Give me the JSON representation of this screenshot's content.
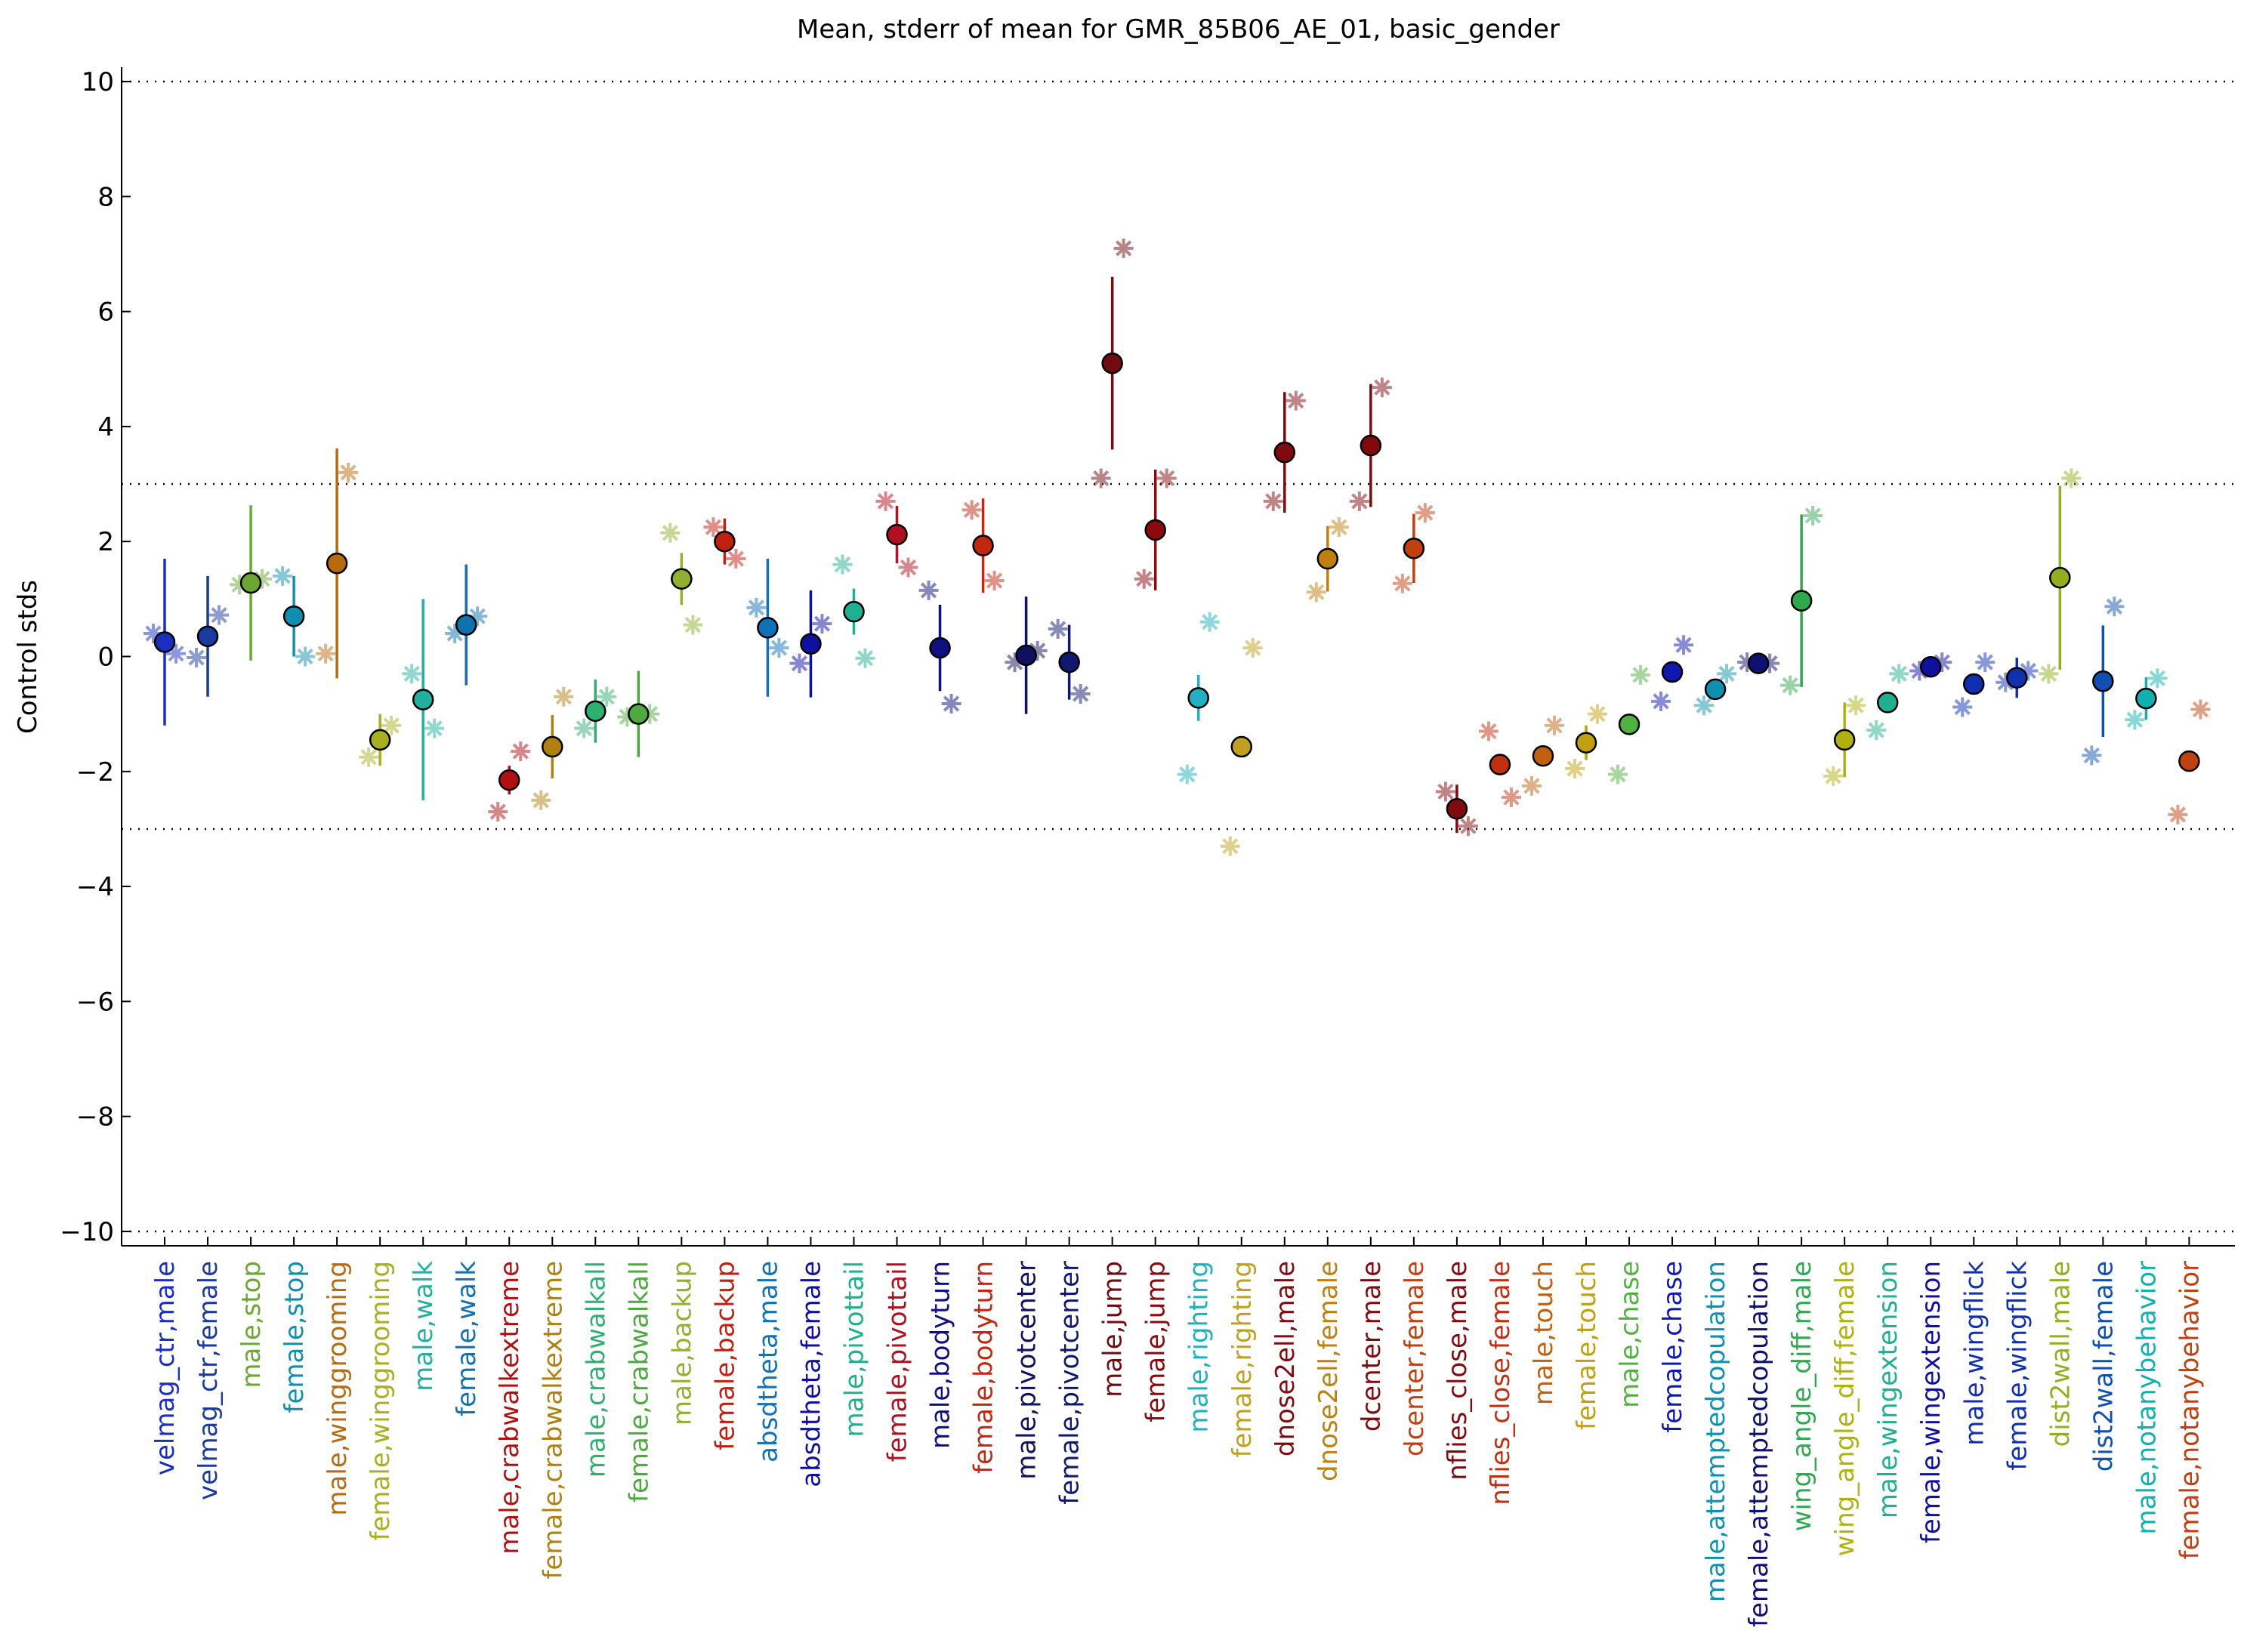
{
  "chart_data": {
    "type": "errorbar",
    "title": "Mean, stderr of mean for GMR_85B06_AE_01, basic_gender",
    "ylabel": "Control stds",
    "categories": [
      "velmag_ctr,male",
      "velmag_ctr,female",
      "male,stop",
      "female,stop",
      "male,winggrooming",
      "female,winggrooming",
      "male,walk",
      "female,walk",
      "male,crabwalkextreme",
      "female,crabwalkextreme",
      "male,crabwalkall",
      "female,crabwalkall",
      "male,backup",
      "female,backup",
      "absdtheta,male",
      "absdtheta,female",
      "male,pivottail",
      "female,pivottail",
      "male,bodyturn",
      "female,bodyturn",
      "male,pivotcenter",
      "female,pivotcenter",
      "male,jump",
      "female,jump",
      "male,righting",
      "female,righting",
      "dnose2ell,male",
      "dnose2ell,female",
      "dcenter,male",
      "dcenter,female",
      "nflies_close,male",
      "nflies_close,female",
      "male,touch",
      "female,touch",
      "male,chase",
      "female,chase",
      "male,attemptedcopulation",
      "female,attemptedcopulation",
      "wing_angle_diff,male",
      "wing_angle_diff,female",
      "male,wingextension",
      "female,wingextension",
      "male,wingflick",
      "female,wingflick",
      "dist2wall,male",
      "dist2wall,female",
      "male,notanybehavior",
      "female,notanybehavior"
    ],
    "values": [
      0.25,
      0.35,
      1.28,
      0.7,
      1.62,
      -1.45,
      -0.75,
      0.55,
      -2.15,
      -1.57,
      -0.95,
      -1.0,
      1.35,
      2.0,
      0.5,
      0.22,
      0.78,
      2.12,
      0.15,
      1.93,
      0.02,
      -0.1,
      5.1,
      2.2,
      -0.72,
      -1.57,
      3.55,
      1.7,
      3.67,
      1.88,
      -2.65,
      -1.88,
      -1.73,
      -1.5,
      -1.18,
      -0.27,
      -0.57,
      -0.12,
      0.97,
      -1.45,
      -0.8,
      -0.18,
      -0.48,
      -0.37,
      1.37,
      -0.43,
      -0.73,
      -1.82
    ],
    "errors": [
      1.45,
      1.05,
      1.35,
      0.7,
      2.0,
      0.45,
      1.75,
      1.05,
      0.25,
      0.55,
      0.55,
      0.75,
      0.45,
      0.4,
      1.2,
      0.93,
      0.4,
      0.5,
      0.75,
      0.82,
      1.02,
      0.65,
      1.5,
      1.05,
      0.4,
      0.05,
      1.05,
      0.57,
      1.07,
      0.6,
      0.42,
      0.1,
      0.05,
      0.3,
      0.05,
      0.05,
      0.1,
      0.05,
      1.5,
      0.65,
      0.05,
      0.1,
      0.1,
      0.35,
      1.6,
      0.97,
      0.37,
      0.05
    ],
    "points_left": [
      0.4,
      -0.02,
      1.25,
      1.4,
      0.05,
      -1.75,
      -0.3,
      0.4,
      -2.7,
      -2.5,
      -1.25,
      -1.05,
      2.15,
      2.25,
      0.85,
      -0.12,
      1.6,
      2.7,
      1.15,
      2.55,
      -0.1,
      0.48,
      3.1,
      1.35,
      -2.05,
      -3.3,
      2.7,
      1.12,
      2.7,
      1.27,
      -2.35,
      -1.3,
      -2.25,
      -1.95,
      -2.05,
      -0.78,
      -0.85,
      -0.1,
      -0.5,
      -2.08,
      -1.28,
      -0.25,
      -0.88,
      -0.45,
      -0.3,
      -1.72,
      -1.1,
      -2.75
    ],
    "points_right": [
      0.05,
      0.72,
      1.35,
      0.0,
      3.2,
      -1.2,
      -1.25,
      0.7,
      -1.65,
      -0.7,
      -0.7,
      -1.0,
      0.55,
      1.7,
      0.15,
      0.57,
      -0.03,
      1.55,
      -0.82,
      1.32,
      0.1,
      -0.65,
      7.1,
      3.1,
      0.6,
      0.15,
      4.45,
      2.25,
      4.68,
      2.5,
      -2.95,
      -2.45,
      -1.2,
      -1.0,
      -0.32,
      0.2,
      -0.3,
      -0.12,
      2.45,
      -0.85,
      -0.3,
      -0.1,
      -0.1,
      -0.25,
      3.1,
      0.87,
      -0.38,
      -0.92
    ],
    "colors": [
      "#1a2fbf",
      "#1a3aa0",
      "#6aa832",
      "#0f8fb0",
      "#b86a10",
      "#a8b020",
      "#20b0a0",
      "#1070b0",
      "#b01010",
      "#b08010",
      "#30b070",
      "#50a840",
      "#90b030",
      "#c02010",
      "#1070b8",
      "#1010a0",
      "#20b090",
      "#b01020",
      "#101080",
      "#c02810",
      "#101060",
      "#101870",
      "#700c10",
      "#8a0a10",
      "#20b0c0",
      "#c0a020",
      "#800a10",
      "#c08010",
      "#800a10",
      "#c04010",
      "#800a10",
      "#c03010",
      "#c06010",
      "#c0a010",
      "#50b040",
      "#1018b0",
      "#1090b0",
      "#101070",
      "#30a850",
      "#b0b010",
      "#20b090",
      "#1010a0",
      "#1030b0",
      "#1030b0",
      "#90b020",
      "#1050b0",
      "#10b0b0",
      "#c04010"
    ],
    "ylim": [
      -10.25,
      10.25
    ],
    "yticks": [
      {
        "value": -10,
        "label": "−10"
      },
      {
        "value": -8,
        "label": "−8"
      },
      {
        "value": -6,
        "label": "−6"
      },
      {
        "value": -4,
        "label": "−4"
      },
      {
        "value": -2,
        "label": "−2"
      },
      0,
      2,
      4,
      6,
      8,
      10
    ],
    "ref_lines": [
      10,
      3,
      -3,
      -10
    ]
  }
}
